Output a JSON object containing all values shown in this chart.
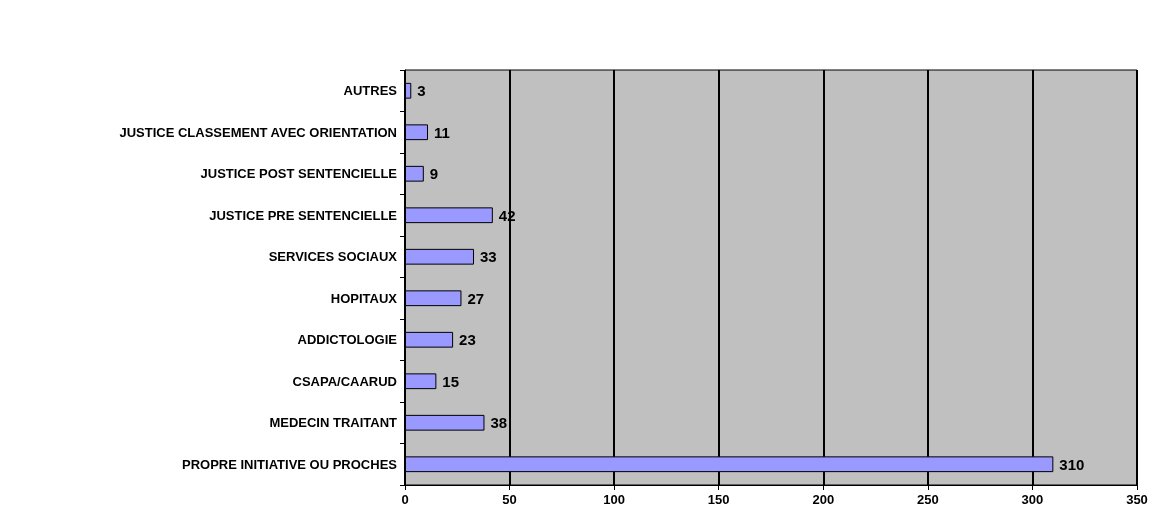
{
  "chart_data": {
    "type": "bar",
    "orientation": "horizontal",
    "categories": [
      "AUTRES",
      "JUSTICE CLASSEMENT AVEC ORIENTATION",
      "JUSTICE POST SENTENCIELLE",
      "JUSTICE PRE SENTENCIELLE",
      "SERVICES SOCIAUX",
      "HOPITAUX",
      "ADDICTOLOGIE",
      "CSAPA/CAARUD",
      "MEDECIN TRAITANT",
      "PROPRE INITIATIVE OU PROCHES"
    ],
    "values": [
      3,
      11,
      9,
      42,
      33,
      27,
      23,
      15,
      38,
      310
    ],
    "color": "#9999ff",
    "xlim": [
      0,
      350
    ],
    "xticks": [
      0,
      50,
      100,
      150,
      200,
      250,
      300,
      350
    ],
    "grid": "x",
    "data_labels": true
  }
}
